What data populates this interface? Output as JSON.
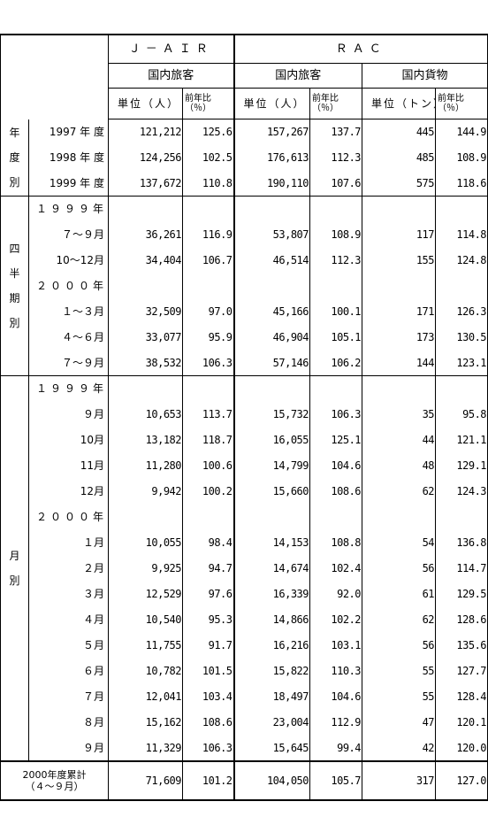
{
  "header": {
    "airline_a": "Ｊ－ＡＩＲ",
    "airline_b": "ＲＡＣ",
    "domestic_passengers": "国内旅客",
    "domestic_cargo": "国内貨物",
    "unit_person": "単位（人）",
    "unit_ton": "単位（トン）",
    "yoy": "前年比（％）"
  },
  "groups": {
    "annual": "年度別",
    "quarterly": "四半期別",
    "monthly": "月別"
  },
  "annual": [
    {
      "label": "1997 年 度",
      "jair": "121,212",
      "jair_yoy": "125.6",
      "rac_p": "157,267",
      "rac_p_yoy": "137.7",
      "rac_c": "445",
      "rac_c_yoy": "144.9"
    },
    {
      "label": "1998 年 度",
      "jair": "124,256",
      "jair_yoy": "102.5",
      "rac_p": "176,613",
      "rac_p_yoy": "112.3",
      "rac_c": "485",
      "rac_c_yoy": "108.9"
    },
    {
      "label": "1999 年 度",
      "jair": "137,672",
      "jair_yoy": "110.8",
      "rac_p": "190,110",
      "rac_p_yoy": "107.6",
      "rac_c": "575",
      "rac_c_yoy": "118.6"
    }
  ],
  "quarterly": {
    "year1": "１９９９年",
    "year2": "２０００年",
    "rows1": [
      {
        "label": "７～９月",
        "jair": "36,261",
        "jair_yoy": "116.9",
        "rac_p": "53,807",
        "rac_p_yoy": "108.9",
        "rac_c": "117",
        "rac_c_yoy": "114.8"
      },
      {
        "label": "10～12月",
        "jair": "34,404",
        "jair_yoy": "106.7",
        "rac_p": "46,514",
        "rac_p_yoy": "112.3",
        "rac_c": "155",
        "rac_c_yoy": "124.8"
      }
    ],
    "rows2": [
      {
        "label": "１～３月",
        "jair": "32,509",
        "jair_yoy": "97.0",
        "rac_p": "45,166",
        "rac_p_yoy": "100.1",
        "rac_c": "171",
        "rac_c_yoy": "126.3"
      },
      {
        "label": "４～６月",
        "jair": "33,077",
        "jair_yoy": "95.9",
        "rac_p": "46,904",
        "rac_p_yoy": "105.1",
        "rac_c": "173",
        "rac_c_yoy": "130.5"
      },
      {
        "label": "７～９月",
        "jair": "38,532",
        "jair_yoy": "106.3",
        "rac_p": "57,146",
        "rac_p_yoy": "106.2",
        "rac_c": "144",
        "rac_c_yoy": "123.1"
      }
    ]
  },
  "monthly": {
    "year1": "１９９９年",
    "year2": "２０００年",
    "rows1": [
      {
        "label": "９月",
        "jair": "10,653",
        "jair_yoy": "113.7",
        "rac_p": "15,732",
        "rac_p_yoy": "106.3",
        "rac_c": "35",
        "rac_c_yoy": "95.8"
      },
      {
        "label": "10月",
        "jair": "13,182",
        "jair_yoy": "118.7",
        "rac_p": "16,055",
        "rac_p_yoy": "125.1",
        "rac_c": "44",
        "rac_c_yoy": "121.1"
      },
      {
        "label": "11月",
        "jair": "11,280",
        "jair_yoy": "100.6",
        "rac_p": "14,799",
        "rac_p_yoy": "104.6",
        "rac_c": "48",
        "rac_c_yoy": "129.1"
      },
      {
        "label": "12月",
        "jair": "9,942",
        "jair_yoy": "100.2",
        "rac_p": "15,660",
        "rac_p_yoy": "108.6",
        "rac_c": "62",
        "rac_c_yoy": "124.3"
      }
    ],
    "rows2": [
      {
        "label": "１月",
        "jair": "10,055",
        "jair_yoy": "98.4",
        "rac_p": "14,153",
        "rac_p_yoy": "108.8",
        "rac_c": "54",
        "rac_c_yoy": "136.8"
      },
      {
        "label": "２月",
        "jair": "9,925",
        "jair_yoy": "94.7",
        "rac_p": "14,674",
        "rac_p_yoy": "102.4",
        "rac_c": "56",
        "rac_c_yoy": "114.7"
      },
      {
        "label": "３月",
        "jair": "12,529",
        "jair_yoy": "97.6",
        "rac_p": "16,339",
        "rac_p_yoy": "92.0",
        "rac_c": "61",
        "rac_c_yoy": "129.5"
      },
      {
        "label": "４月",
        "jair": "10,540",
        "jair_yoy": "95.3",
        "rac_p": "14,866",
        "rac_p_yoy": "102.2",
        "rac_c": "62",
        "rac_c_yoy": "128.6"
      },
      {
        "label": "５月",
        "jair": "11,755",
        "jair_yoy": "91.7",
        "rac_p": "16,216",
        "rac_p_yoy": "103.1",
        "rac_c": "56",
        "rac_c_yoy": "135.6"
      },
      {
        "label": "６月",
        "jair": "10,782",
        "jair_yoy": "101.5",
        "rac_p": "15,822",
        "rac_p_yoy": "110.3",
        "rac_c": "55",
        "rac_c_yoy": "127.7"
      },
      {
        "label": "７月",
        "jair": "12,041",
        "jair_yoy": "103.4",
        "rac_p": "18,497",
        "rac_p_yoy": "104.6",
        "rac_c": "55",
        "rac_c_yoy": "128.4"
      },
      {
        "label": "８月",
        "jair": "15,162",
        "jair_yoy": "108.6",
        "rac_p": "23,004",
        "rac_p_yoy": "112.9",
        "rac_c": "47",
        "rac_c_yoy": "120.1"
      },
      {
        "label": "９月",
        "jair": "11,329",
        "jair_yoy": "106.3",
        "rac_p": "15,645",
        "rac_p_yoy": "99.4",
        "rac_c": "42",
        "rac_c_yoy": "120.0"
      }
    ]
  },
  "total": {
    "label": "2000年度累計（４～９月）",
    "jair": "71,609",
    "jair_yoy": "101.2",
    "rac_p": "104,050",
    "rac_p_yoy": "105.7",
    "rac_c": "317",
    "rac_c_yoy": "127.0"
  }
}
